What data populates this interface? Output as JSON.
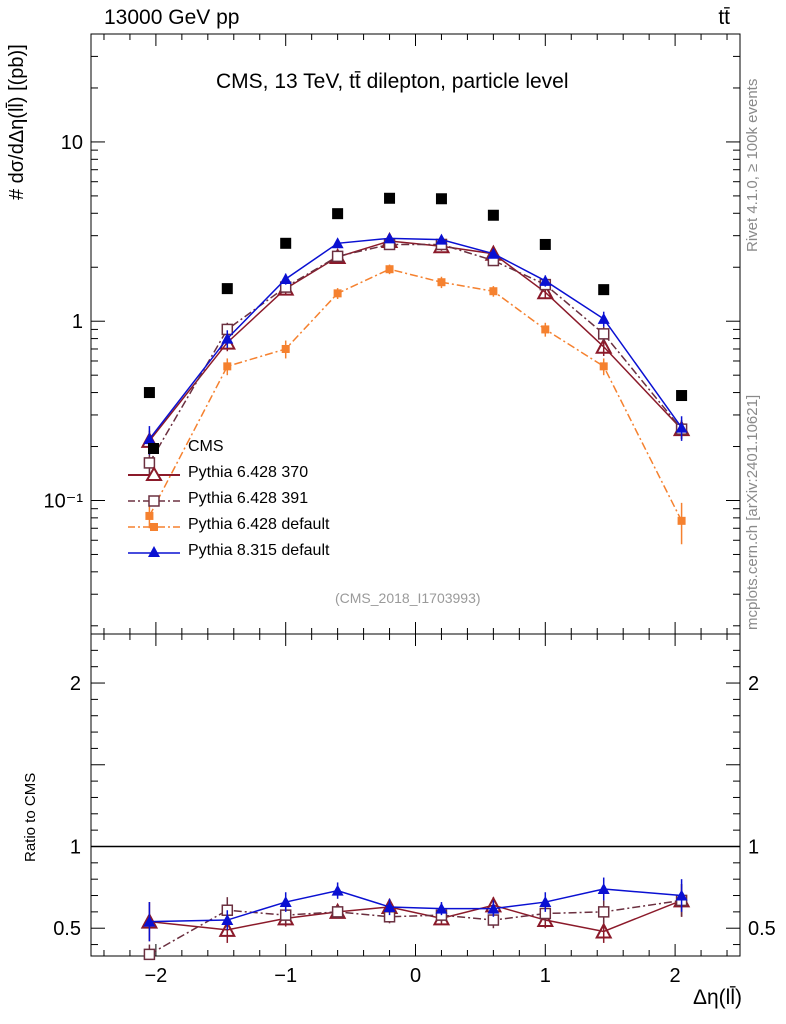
{
  "header": {
    "energy_label": "13000 GeV pp",
    "process_label": "tt̄"
  },
  "title": "CMS, 13 TeV, tt̄ dilepton, particle level",
  "watermark": "(CMS_2018_I1703993)",
  "side_labels": {
    "rivet": "Rivet 4.1.0, ≥ 100k events",
    "mcplots": "mcplots.cern.ch [arXiv:2401.10621]"
  },
  "axes": {
    "ylabel_main": "# dσ/dΔη(ll̄) [(pb)]",
    "ylabel_ratio": "Ratio to CMS",
    "xlabel": "Δη(ll̄)",
    "x_ticks": [
      "−2",
      "−1",
      "0",
      "1",
      "2"
    ],
    "y_ticks_main": [
      "10⁻¹",
      "1",
      "10"
    ],
    "y_ticks_ratio": [
      "0.5",
      "1",
      "2"
    ]
  },
  "legend": [
    {
      "label": "CMS"
    },
    {
      "label": "Pythia 6.428 370"
    },
    {
      "label": "Pythia 6.428 391"
    },
    {
      "label": "Pythia 6.428 default"
    },
    {
      "label": "Pythia 8.315 default"
    }
  ],
  "colors": {
    "cms": "#000000",
    "p370": "#8b1a2a",
    "p391": "#6b3040",
    "p6def": "#f5812f",
    "p8def": "#0a10d2"
  },
  "chart_data": {
    "type": "scatter",
    "x": [
      -2.05,
      -1.45,
      -1.0,
      -0.6,
      -0.2,
      0.2,
      0.6,
      1.0,
      1.45,
      2.05
    ],
    "xlim": [
      -2.5,
      2.5
    ],
    "ylim_main": [
      0.018,
      40
    ],
    "yscale_main": "log",
    "ylim_ratio": [
      0.33,
      2.3
    ],
    "series": [
      {
        "name": "CMS",
        "key": "cms",
        "marker": "square-filled",
        "linestyle": "none",
        "values": [
          0.4,
          1.52,
          2.72,
          3.98,
          4.85,
          4.82,
          3.9,
          2.68,
          1.5,
          0.385
        ]
      },
      {
        "name": "Pythia 6.428 370",
        "key": "p370",
        "marker": "triangle-open",
        "linestyle": "solid",
        "values": [
          0.215,
          0.76,
          1.52,
          2.28,
          2.8,
          2.62,
          2.38,
          1.45,
          0.72,
          0.25
        ],
        "errors": [
          0.03,
          0.08,
          0.1,
          0.12,
          0.15,
          0.15,
          0.12,
          0.1,
          0.08,
          0.03
        ],
        "ratio": [
          0.54,
          0.49,
          0.56,
          0.6,
          0.63,
          0.56,
          0.64,
          0.55,
          0.48,
          0.67
        ],
        "ratio_err": [
          0.12,
          0.08,
          0.05,
          0.04,
          0.04,
          0.04,
          0.05,
          0.05,
          0.07,
          0.1
        ]
      },
      {
        "name": "Pythia 6.428 391",
        "key": "p391",
        "marker": "square-open",
        "linestyle": "dashdot",
        "values": [
          0.162,
          0.9,
          1.55,
          2.3,
          2.68,
          2.68,
          2.18,
          1.6,
          0.85,
          0.25
        ],
        "errors": [
          0.03,
          0.08,
          0.1,
          0.12,
          0.15,
          0.15,
          0.12,
          0.1,
          0.08,
          0.03
        ],
        "ratio": [
          0.34,
          0.61,
          0.58,
          0.6,
          0.57,
          0.58,
          0.55,
          0.59,
          0.6,
          0.67
        ],
        "ratio_err": [
          0.06,
          0.08,
          0.05,
          0.04,
          0.04,
          0.04,
          0.05,
          0.05,
          0.07,
          0.1
        ]
      },
      {
        "name": "Pythia 6.428 default",
        "key": "p6def",
        "marker": "square-filled",
        "linestyle": "dashdot",
        "values": [
          0.082,
          0.56,
          0.7,
          1.43,
          1.95,
          1.65,
          1.47,
          0.9,
          0.56,
          0.077
        ],
        "errors": [
          0.012,
          0.06,
          0.08,
          0.1,
          0.12,
          0.12,
          0.1,
          0.08,
          0.06,
          0.02
        ],
        "ratio": [],
        "ratio_err": []
      },
      {
        "name": "Pythia 8.315 default",
        "key": "p8def",
        "marker": "triangle-filled",
        "linestyle": "solid",
        "values": [
          0.22,
          0.8,
          1.72,
          2.72,
          2.9,
          2.85,
          2.38,
          1.68,
          1.03,
          0.255
        ],
        "errors": [
          0.04,
          0.09,
          0.12,
          0.15,
          0.15,
          0.15,
          0.12,
          0.12,
          0.1,
          0.04
        ],
        "ratio": [
          0.54,
          0.55,
          0.66,
          0.73,
          0.63,
          0.62,
          0.62,
          0.66,
          0.74,
          0.7
        ],
        "ratio_err": [
          0.12,
          0.06,
          0.06,
          0.05,
          0.05,
          0.04,
          0.05,
          0.06,
          0.07,
          0.1
        ]
      }
    ]
  }
}
